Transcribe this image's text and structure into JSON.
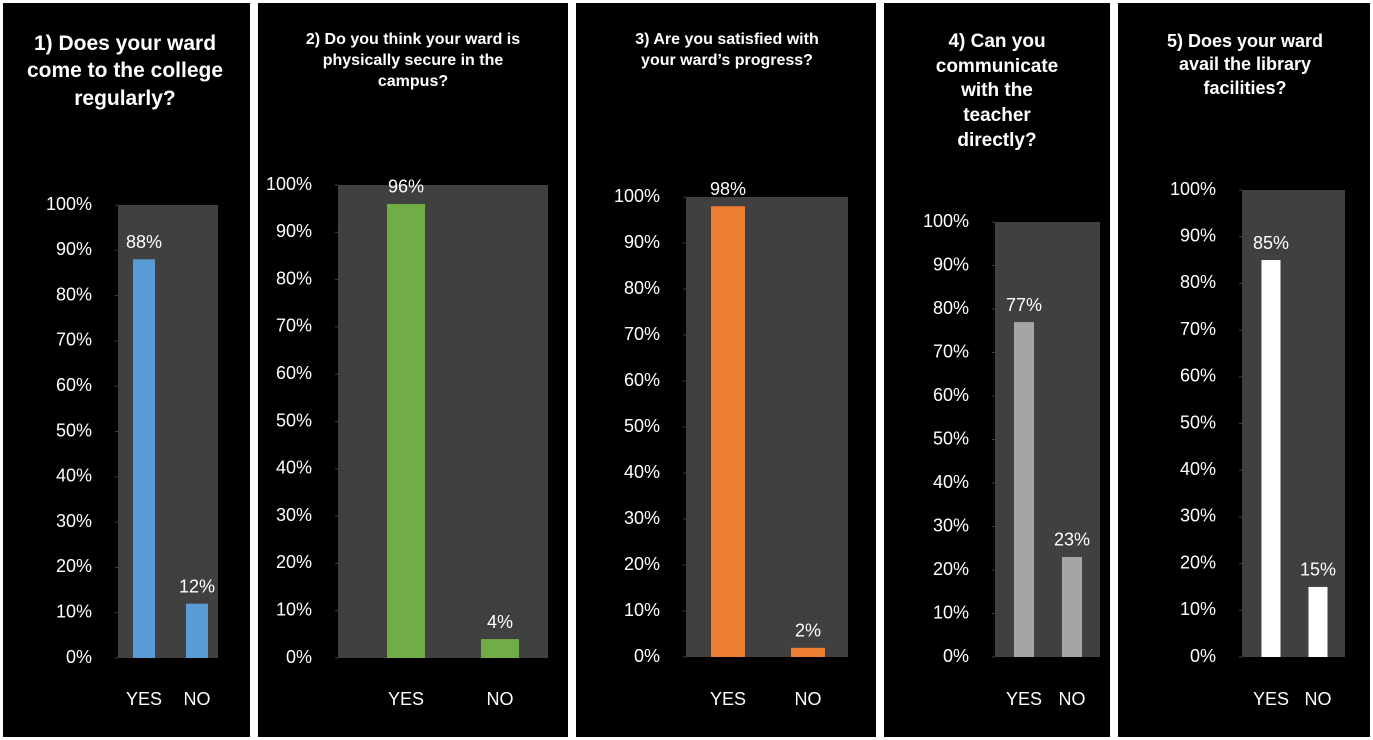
{
  "chart_data": [
    {
      "type": "bar",
      "title": "1) Does your ward come to the college regularly?",
      "categories": [
        "YES",
        "NO"
      ],
      "values": [
        88,
        12
      ],
      "value_labels": [
        "88%",
        "12%"
      ],
      "color": "#5b9bd5",
      "ylim": [
        0,
        100
      ],
      "yticks": [
        {
          "value": 0,
          "label": "0%"
        },
        {
          "value": 10,
          "label": "10%"
        },
        {
          "value": 20,
          "label": "20%"
        },
        {
          "value": 30,
          "label": "30%"
        },
        {
          "value": 40,
          "label": "40%"
        },
        {
          "value": 50,
          "label": "50%"
        },
        {
          "value": 60,
          "label": "60%"
        },
        {
          "value": 70,
          "label": "70%"
        },
        {
          "value": 80,
          "label": "80%"
        },
        {
          "value": 90,
          "label": "90%"
        },
        {
          "value": 100,
          "label": "100%"
        }
      ]
    },
    {
      "type": "bar",
      "title": "2) Do you think your ward is physically secure in the campus?",
      "categories": [
        "YES",
        "NO"
      ],
      "values": [
        96,
        4
      ],
      "value_labels": [
        "96%",
        "4%"
      ],
      "color": "#70ad47",
      "ylim": [
        0,
        100
      ],
      "yticks": [
        {
          "value": 0,
          "label": "0%"
        },
        {
          "value": 10,
          "label": "10%"
        },
        {
          "value": 20,
          "label": "20%"
        },
        {
          "value": 30,
          "label": "30%"
        },
        {
          "value": 40,
          "label": "40%"
        },
        {
          "value": 50,
          "label": "50%"
        },
        {
          "value": 60,
          "label": "60%"
        },
        {
          "value": 70,
          "label": "70%"
        },
        {
          "value": 80,
          "label": "80%"
        },
        {
          "value": 90,
          "label": "90%"
        },
        {
          "value": 100,
          "label": "100%"
        }
      ]
    },
    {
      "type": "bar",
      "title": "3) Are you satisfied with your ward’s progress?",
      "categories": [
        "YES",
        "NO"
      ],
      "values": [
        98,
        2
      ],
      "value_labels": [
        "98%",
        "2%"
      ],
      "color": "#ed7d31",
      "ylim": [
        0,
        100
      ],
      "yticks": [
        {
          "value": 0,
          "label": "0%"
        },
        {
          "value": 10,
          "label": "10%"
        },
        {
          "value": 20,
          "label": "20%"
        },
        {
          "value": 30,
          "label": "30%"
        },
        {
          "value": 40,
          "label": "40%"
        },
        {
          "value": 50,
          "label": "50%"
        },
        {
          "value": 60,
          "label": "60%"
        },
        {
          "value": 70,
          "label": "70%"
        },
        {
          "value": 80,
          "label": "80%"
        },
        {
          "value": 90,
          "label": "90%"
        },
        {
          "value": 100,
          "label": "100%"
        }
      ]
    },
    {
      "type": "bar",
      "title": "4) Can you communicate with the teacher directly?",
      "categories": [
        "YES",
        "NO"
      ],
      "values": [
        77,
        23
      ],
      "value_labels": [
        "77%",
        "23%"
      ],
      "color": "#a5a5a5",
      "ylim": [
        0,
        100
      ],
      "yticks": [
        {
          "value": 0,
          "label": "0%"
        },
        {
          "value": 10,
          "label": "10%"
        },
        {
          "value": 20,
          "label": "20%"
        },
        {
          "value": 30,
          "label": "30%"
        },
        {
          "value": 40,
          "label": "40%"
        },
        {
          "value": 50,
          "label": "50%"
        },
        {
          "value": 60,
          "label": "60%"
        },
        {
          "value": 70,
          "label": "70%"
        },
        {
          "value": 80,
          "label": "80%"
        },
        {
          "value": 90,
          "label": "90%"
        },
        {
          "value": 100,
          "label": "100%"
        }
      ]
    },
    {
      "type": "bar",
      "title": "5) Does your ward avail the library facilities?",
      "categories": [
        "YES",
        "NO"
      ],
      "values": [
        85,
        15
      ],
      "value_labels": [
        "85%",
        "15%"
      ],
      "color": "#ffffff",
      "ylim": [
        0,
        100
      ],
      "yticks": [
        {
          "value": 0,
          "label": "0%"
        },
        {
          "value": 10,
          "label": "10%"
        },
        {
          "value": 20,
          "label": "20%"
        },
        {
          "value": 30,
          "label": "30%"
        },
        {
          "value": 40,
          "label": "40%"
        },
        {
          "value": 50,
          "label": "50%"
        },
        {
          "value": 60,
          "label": "60%"
        },
        {
          "value": 70,
          "label": "70%"
        },
        {
          "value": 80,
          "label": "80%"
        },
        {
          "value": 90,
          "label": "90%"
        },
        {
          "value": 100,
          "label": "100%"
        }
      ]
    }
  ]
}
